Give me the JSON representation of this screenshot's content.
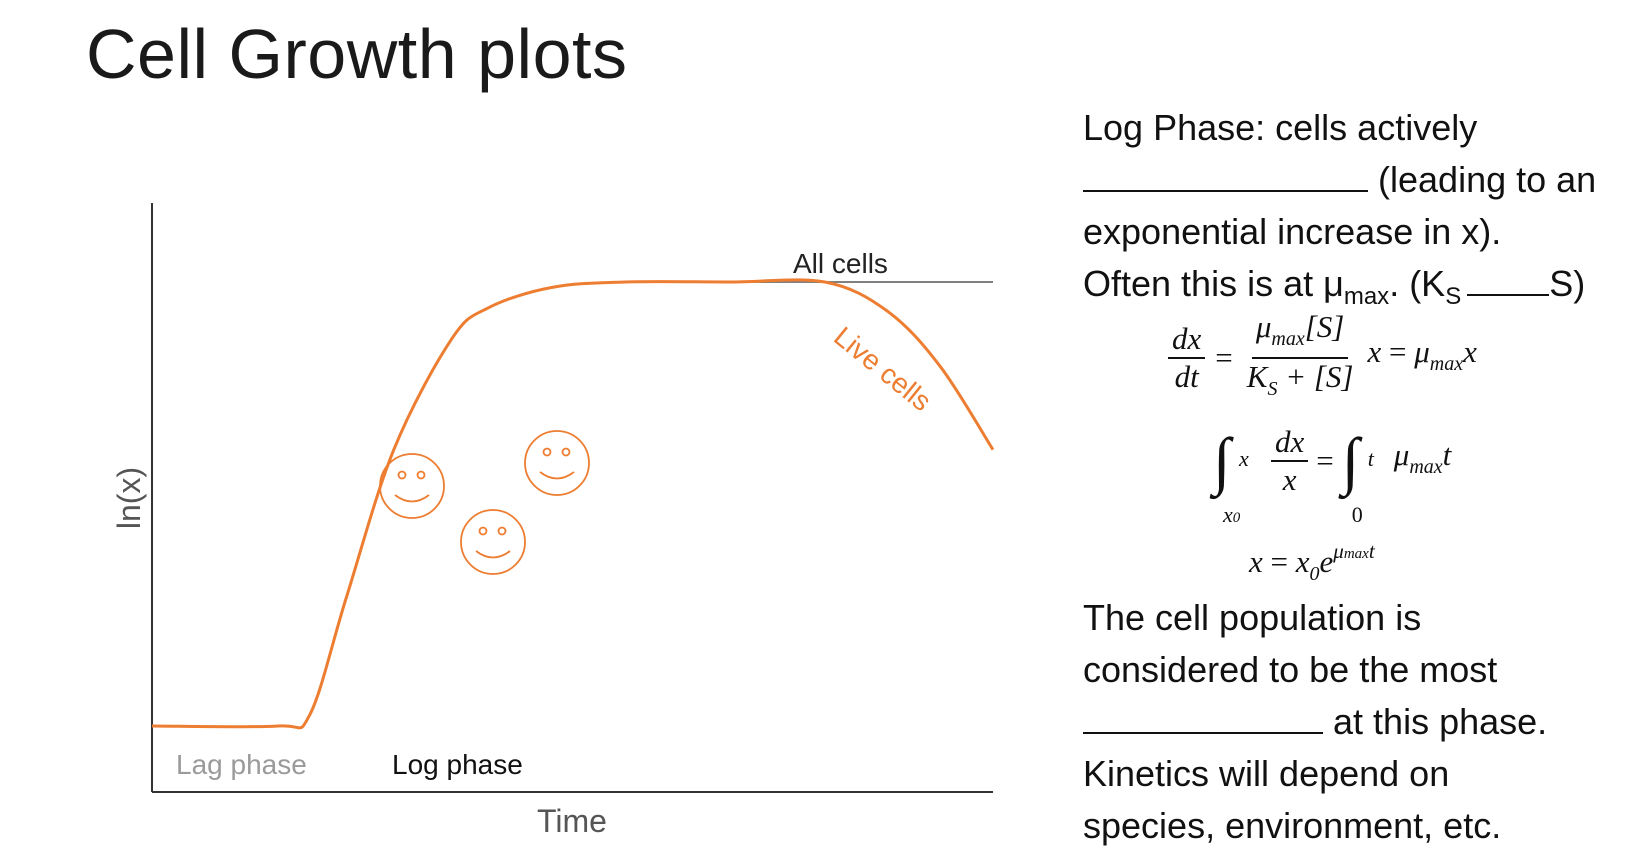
{
  "slide": {
    "title": "Cell Growth plots"
  },
  "chart_data": {
    "type": "line",
    "title": "",
    "xlabel": "Time",
    "ylabel": "ln(x)",
    "series": [
      {
        "name": "All cells",
        "color": "#808080",
        "x": [
          0,
          12,
          15,
          18.5,
          23,
          28.5,
          32,
          38,
          45,
          55,
          64,
          70,
          80
        ],
        "y": [
          0,
          0,
          0.6,
          7,
          15,
          21,
          22.7,
          23.8,
          24.1,
          24.1,
          24.1,
          24.1,
          24.1
        ]
      },
      {
        "name": "Live cells",
        "color": "#ED7D31",
        "x": [
          0,
          12,
          15,
          18.5,
          23,
          28.5,
          32,
          38,
          45,
          55,
          64,
          70,
          75,
          80
        ],
        "y": [
          0,
          0,
          0.6,
          7,
          15,
          21,
          22.7,
          23.8,
          24.1,
          24.1,
          24.1,
          22.5,
          19.5,
          15
        ]
      }
    ],
    "phase_labels": [
      "Lag phase",
      "Log phase"
    ],
    "annotations": [
      "All cells",
      "Live cells"
    ],
    "icons": [
      "smiley-face-icon",
      "smiley-face-icon",
      "smiley-face-icon"
    ],
    "colors": {
      "live": "#ED7D31",
      "all": "#808080",
      "axis": "#333333",
      "lag_text": "#9a9a9a"
    }
  },
  "notes": {
    "p1_a": "Log Phase: cells actively",
    "p1_b": "(leading to an",
    "p1_c": "exponential increase in x).",
    "p1_d1": "Often this is at μ",
    "p1_d_sub": "max",
    "p1_d2": ". (K",
    "p1_d_sub2": "S",
    "p1_d3": "S)",
    "p2_a": "The cell population is",
    "p2_b": "considered to be the most",
    "p2_c": "at this phase.",
    "p2_d": "Kinetics will depend on",
    "p2_e": "species, environment, etc."
  }
}
